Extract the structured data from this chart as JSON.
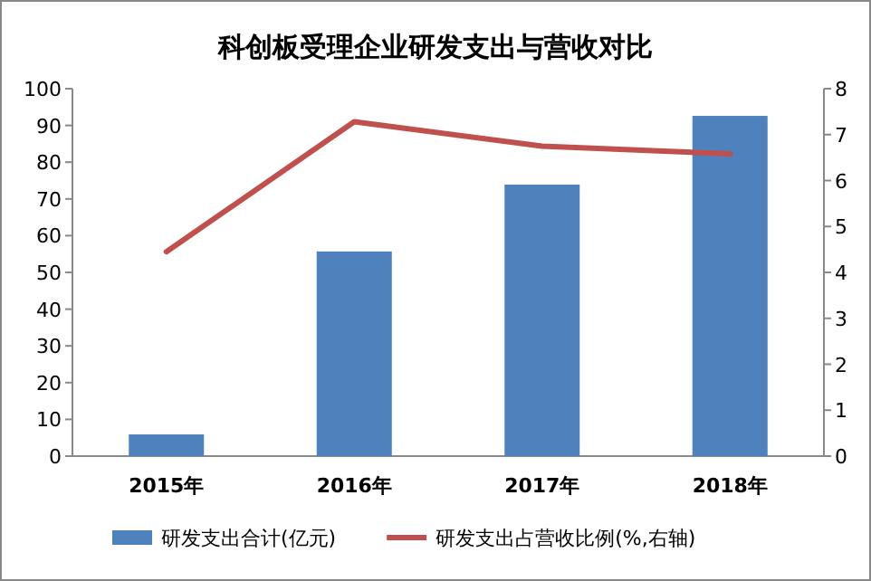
{
  "chart_data": {
    "type": "bar",
    "title": "科创板受理企业研发支出与营收对比",
    "categories": [
      "2015年",
      "2016年",
      "2017年",
      "2018年"
    ],
    "series": [
      {
        "name": "研发支出合计(亿元)",
        "color": "#4f81bd",
        "values": [
          5.9,
          55.7,
          73.9,
          92.6
        ]
      },
      {
        "name": "研发支出占营收比例(%,右轴)",
        "color": "#c0504d",
        "type": "line",
        "axis": "y2",
        "values": [
          4.45,
          7.28,
          6.75,
          6.58
        ]
      }
    ],
    "ylim": [
      0,
      100
    ],
    "yticks": [
      0,
      10,
      20,
      30,
      40,
      50,
      60,
      70,
      80,
      90,
      100
    ],
    "y2lim": [
      0,
      8
    ],
    "y2ticks": [
      0,
      1,
      2,
      3,
      4,
      5,
      6,
      7,
      8
    ],
    "legend": "bottom",
    "marker": "none"
  }
}
